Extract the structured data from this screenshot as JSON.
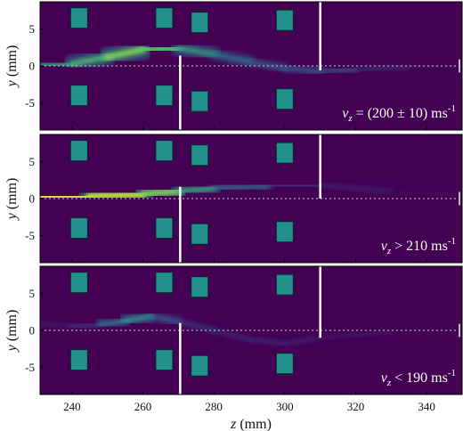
{
  "chart_data": {
    "type": "heatmap",
    "shared_x": true,
    "xlabel_var": "z",
    "xlabel_unit": "(mm)",
    "ylabel_var": "y",
    "ylabel_unit": "(mm)",
    "xlim": [
      231,
      350
    ],
    "ylim": [
      -8.7,
      8.7
    ],
    "xticks": [
      240,
      260,
      280,
      300,
      320,
      340
    ],
    "yticks": [
      5,
      0,
      -5
    ],
    "background_color": "#440154",
    "magnet_color": "#21918c",
    "magnets": [
      {
        "z": 242,
        "y": 6.5
      },
      {
        "z": 266,
        "y": 6.5
      },
      {
        "z": 276,
        "y": 5.9
      },
      {
        "z": 300,
        "y": 6.2
      },
      {
        "z": 242,
        "y": -4.0
      },
      {
        "z": 266,
        "y": -4.0
      },
      {
        "z": 276,
        "y": -4.8
      },
      {
        "z": 300,
        "y": -4.5
      }
    ],
    "panels": [
      {
        "annotation_var": "v",
        "annotation_sub": "z",
        "annotation_text": " = (200 ± 10) ms",
        "annotation_sup": "-1",
        "slits": [
          {
            "z": 270.5,
            "y_from": 1.4,
            "y_to": -8.7
          },
          {
            "z": 310,
            "y_from": 8.7,
            "y_to": -0.6
          }
        ],
        "beam": [
          {
            "z": 231,
            "y": 0.1,
            "intensity": 0.55
          },
          {
            "z": 240,
            "y": 0.3,
            "intensity": 0.6
          },
          {
            "z": 250,
            "y": 1.2,
            "intensity": 0.75
          },
          {
            "z": 260,
            "y": 2.2,
            "intensity": 0.85
          },
          {
            "z": 270,
            "y": 2.4,
            "intensity": 0.65
          },
          {
            "z": 280,
            "y": 1.6,
            "intensity": 0.5
          },
          {
            "z": 290,
            "y": 0.6,
            "intensity": 0.38
          },
          {
            "z": 300,
            "y": -0.3,
            "intensity": 0.3
          },
          {
            "z": 310,
            "y": -0.8,
            "intensity": 0.35
          },
          {
            "z": 320,
            "y": -0.5,
            "intensity": 0.22
          },
          {
            "z": 335,
            "y": -0.1,
            "intensity": 0.12
          },
          {
            "z": 350,
            "y": 0.0,
            "intensity": 0.08
          }
        ]
      },
      {
        "annotation_var": "v",
        "annotation_sub": "z",
        "annotation_text": " > 210 ms",
        "annotation_sup": "-1",
        "slits": [
          {
            "z": 270.5,
            "y_from": 1.6,
            "y_to": -8.7
          },
          {
            "z": 310,
            "y_from": 8.7,
            "y_to": 0.0
          }
        ],
        "beam": [
          {
            "z": 231,
            "y": 0.2,
            "intensity": 1.0
          },
          {
            "z": 245,
            "y": 0.3,
            "intensity": 0.95
          },
          {
            "z": 260,
            "y": 0.6,
            "intensity": 0.85
          },
          {
            "z": 270,
            "y": 1.0,
            "intensity": 0.75
          },
          {
            "z": 280,
            "y": 1.4,
            "intensity": 0.45
          },
          {
            "z": 295,
            "y": 1.7,
            "intensity": 0.32
          },
          {
            "z": 310,
            "y": 1.8,
            "intensity": 0.2
          },
          {
            "z": 330,
            "y": 1.0,
            "intensity": 0.05
          },
          {
            "z": 350,
            "y": 0.5,
            "intensity": 0.03
          }
        ]
      },
      {
        "annotation_var": "v",
        "annotation_sub": "z",
        "annotation_text": " < 190 ms",
        "annotation_sup": "-1",
        "slits": [
          {
            "z": 270.5,
            "y_from": 1.0,
            "y_to": -8.7
          },
          {
            "z": 310,
            "y_from": 8.7,
            "y_to": -1.0
          }
        ],
        "beam": [
          {
            "z": 231,
            "y": 1.0,
            "intensity": 0.08
          },
          {
            "z": 240,
            "y": 0.5,
            "intensity": 0.12
          },
          {
            "z": 248,
            "y": 0.8,
            "intensity": 0.3
          },
          {
            "z": 255,
            "y": 1.3,
            "intensity": 0.6
          },
          {
            "z": 262,
            "y": 1.9,
            "intensity": 0.5
          },
          {
            "z": 270,
            "y": 1.2,
            "intensity": 0.22
          },
          {
            "z": 280,
            "y": 0.0,
            "intensity": 0.18
          },
          {
            "z": 290,
            "y": -1.2,
            "intensity": 0.15
          },
          {
            "z": 300,
            "y": -1.8,
            "intensity": 0.15
          },
          {
            "z": 310,
            "y": -1.0,
            "intensity": 0.12
          },
          {
            "z": 330,
            "y": -0.2,
            "intensity": 0.05
          },
          {
            "z": 350,
            "y": 0.0,
            "intensity": 0.03
          }
        ]
      }
    ]
  }
}
